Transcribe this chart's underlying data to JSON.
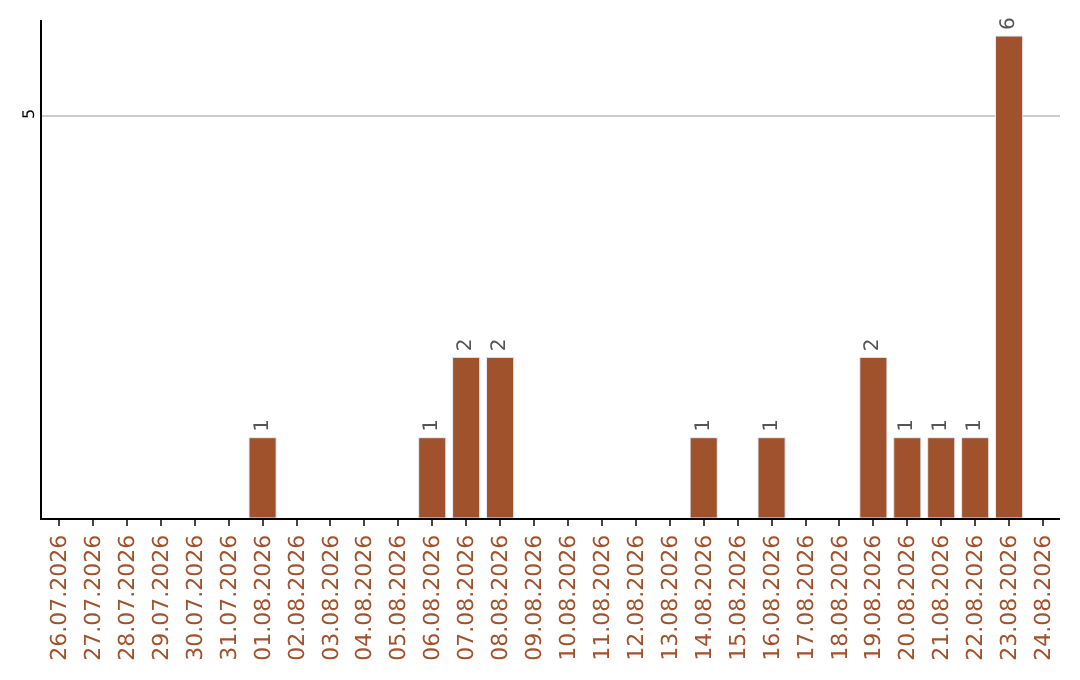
{
  "chart_data": {
    "type": "bar",
    "categories": [
      "26.07.2026",
      "27.07.2026",
      "28.07.2026",
      "29.07.2026",
      "30.07.2026",
      "31.07.2026",
      "01.08.2026",
      "02.08.2026",
      "03.08.2026",
      "04.08.2026",
      "05.08.2026",
      "06.08.2026",
      "07.08.2026",
      "08.08.2026",
      "09.08.2026",
      "10.08.2026",
      "11.08.2026",
      "12.08.2026",
      "13.08.2026",
      "14.08.2026",
      "15.08.2026",
      "16.08.2026",
      "17.08.2026",
      "18.08.2026",
      "19.08.2026",
      "20.08.2026",
      "21.08.2026",
      "22.08.2026",
      "23.08.2026",
      "24.08.2026"
    ],
    "values": [
      null,
      null,
      null,
      null,
      null,
      null,
      1,
      null,
      null,
      null,
      null,
      1,
      2,
      2,
      null,
      null,
      null,
      null,
      null,
      1,
      null,
      1,
      null,
      null,
      2,
      1,
      1,
      1,
      6,
      null
    ],
    "color": "#a0522d",
    "ylim": [
      0,
      6.2
    ],
    "yticks": [
      5
    ],
    "grid": "y",
    "data_labels": true,
    "legend": false
  }
}
